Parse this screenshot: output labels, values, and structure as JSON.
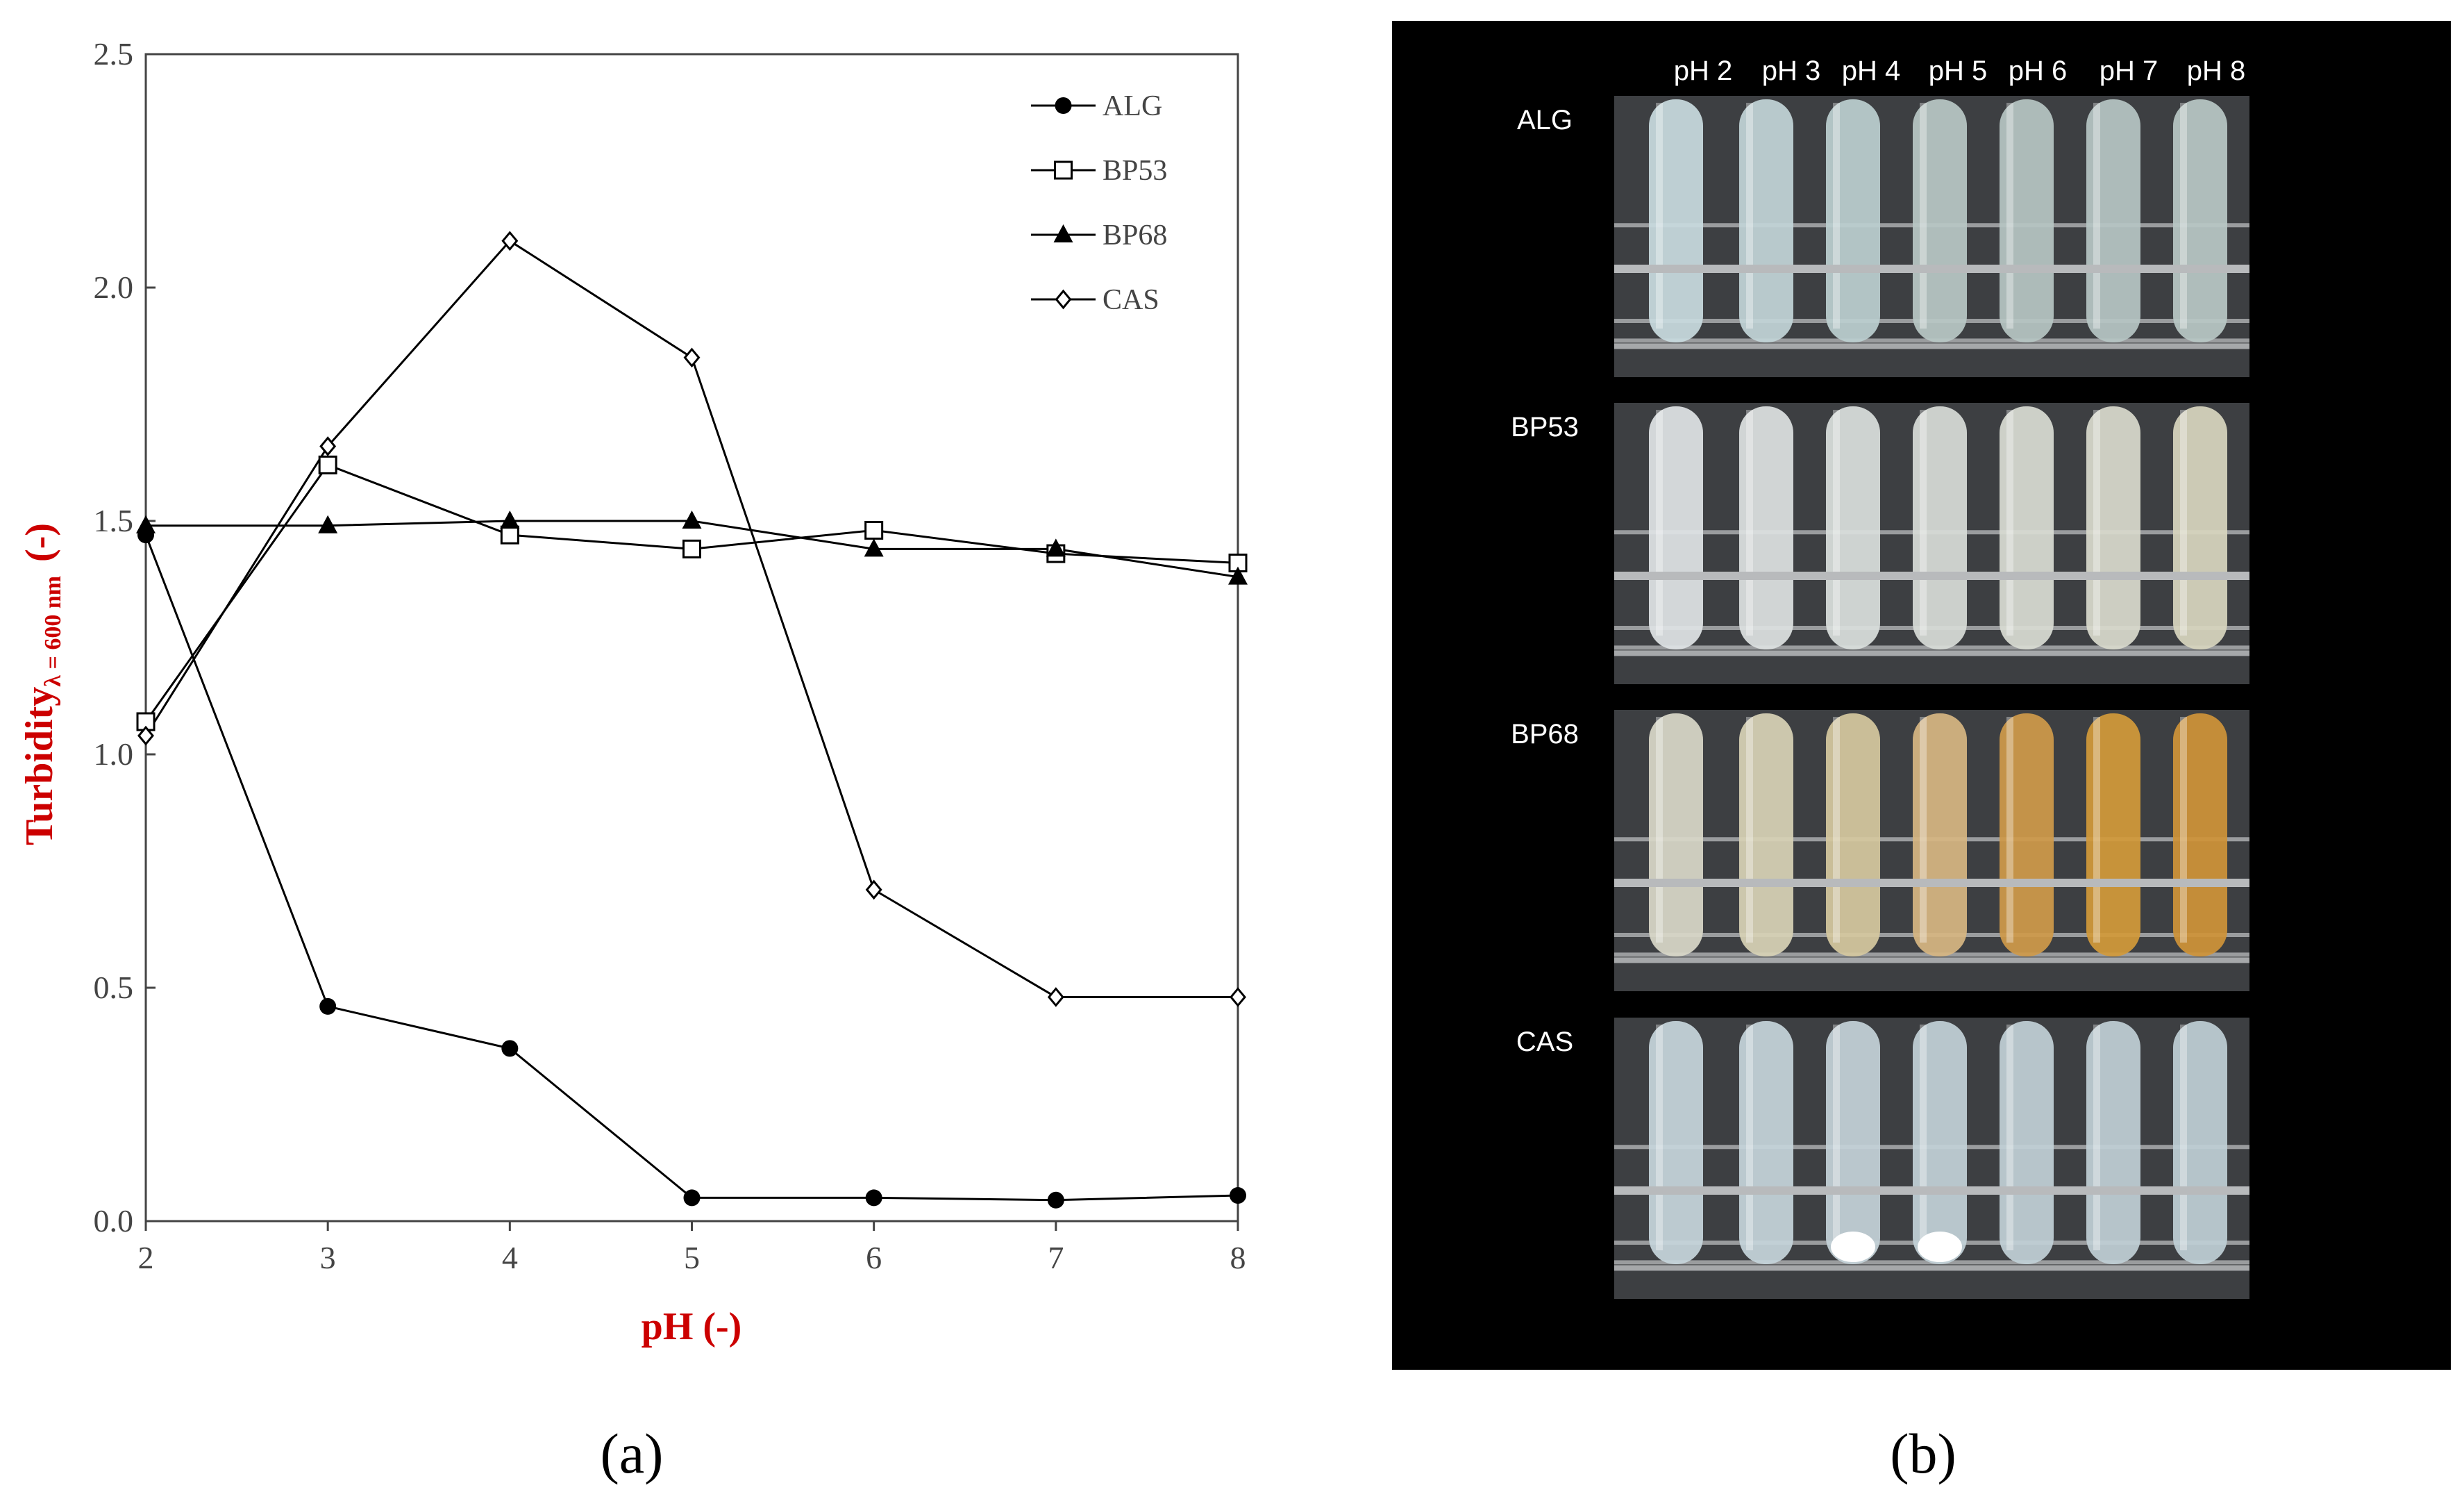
{
  "chart_data": {
    "type": "line",
    "xlabel": "pH (-)",
    "ylabel": {
      "main": "Turbidity",
      "sub": "λ = 600 nm",
      "unit": "(-)"
    },
    "x": [
      2,
      3,
      4,
      5,
      6,
      7,
      8
    ],
    "xlim": [
      2,
      8
    ],
    "ylim": [
      0,
      2.5
    ],
    "x_ticks": [
      "2",
      "3",
      "4",
      "5",
      "6",
      "7",
      "8"
    ],
    "y_ticks": [
      "0.0",
      "0.5",
      "1.0",
      "1.5",
      "2.0",
      "2.5"
    ],
    "grid": false,
    "legend_position": "top-right",
    "series": [
      {
        "name": "ALG",
        "marker": "filled-circle",
        "values": [
          1.47,
          0.46,
          0.37,
          0.05,
          0.05,
          0.045,
          0.055
        ]
      },
      {
        "name": "BP53",
        "marker": "open-square",
        "values": [
          1.07,
          1.62,
          1.47,
          1.44,
          1.48,
          1.43,
          1.41
        ]
      },
      {
        "name": "BP68",
        "marker": "filled-triangle",
        "values": [
          1.49,
          1.49,
          1.5,
          1.5,
          1.44,
          1.44,
          1.38
        ]
      },
      {
        "name": "CAS",
        "marker": "open-diamond",
        "values": [
          1.04,
          1.66,
          2.1,
          1.85,
          0.71,
          0.48,
          0.48
        ]
      }
    ]
  },
  "panel_a_label": "(a)",
  "panel_b_label": "(b)",
  "photo": {
    "ph_labels": [
      "pH 2",
      "pH 3",
      "pH 4",
      "pH 5",
      "pH 6",
      "pH 7",
      "pH 8"
    ],
    "rows": [
      {
        "label": "ALG",
        "tube_colors": [
          "#c9dbe0",
          "#c2d5d8",
          "#bccfd0",
          "#b8c8c6",
          "#b6c5c3",
          "#b6c5c4",
          "#b9c8c6"
        ],
        "sediment": [
          false,
          false,
          false,
          false,
          false,
          false,
          false
        ]
      },
      {
        "label": "BP53",
        "tube_colors": [
          "#dfe4e6",
          "#dde2e2",
          "#dadfdd",
          "#d8dcd8",
          "#d9dcd4",
          "#d9dacd",
          "#d8d6bf"
        ],
        "sediment": [
          false,
          false,
          false,
          false,
          false,
          false,
          false
        ]
      },
      {
        "label": "BP68",
        "tube_colors": [
          "#d9d8c9",
          "#d8d2b6",
          "#d6c9a0",
          "#d7b682",
          "#cf9a4a",
          "#d29a3a",
          "#cf9438"
        ],
        "sediment": [
          false,
          false,
          false,
          false,
          false,
          false,
          false
        ]
      },
      {
        "label": "CAS",
        "tube_colors": [
          "#c7d6dc",
          "#c6d5db",
          "#c4d3d9",
          "#c2d1d8",
          "#c1d0d7",
          "#c0cfd6",
          "#bfcfd6"
        ],
        "sediment": [
          false,
          false,
          true,
          true,
          false,
          false,
          false
        ]
      }
    ]
  }
}
